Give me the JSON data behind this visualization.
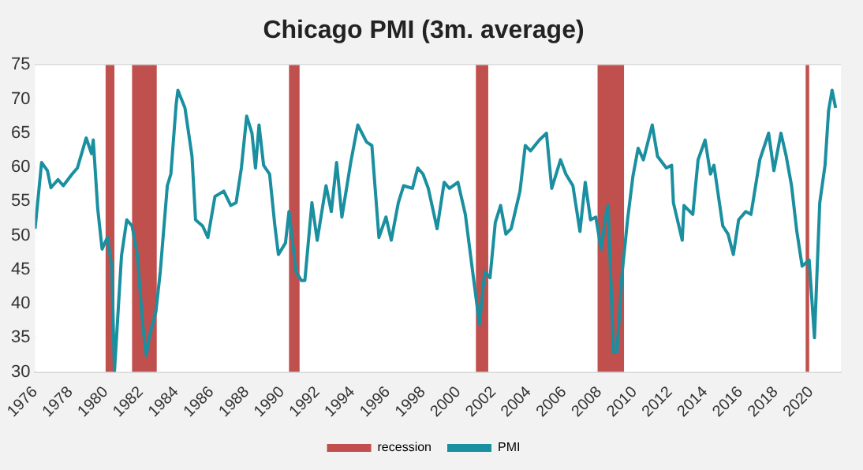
{
  "chart_data": {
    "type": "line",
    "title": "Chicago PMI (3m. average)",
    "series": [
      {
        "name": "PMI",
        "color": "#1a8fa0",
        "x": [
          1976.0,
          1976.37,
          1976.7,
          1976.9,
          1977.3,
          1977.6,
          1978.1,
          1978.4,
          1978.9,
          1979.2,
          1979.3,
          1979.55,
          1979.8,
          1980.1,
          1980.35,
          1980.5,
          1980.9,
          1981.2,
          1981.5,
          1981.8,
          1982.1,
          1982.3,
          1982.5,
          1982.85,
          1983.1,
          1983.5,
          1983.7,
          1984.0,
          1984.1,
          1984.5,
          1984.9,
          1985.1,
          1985.5,
          1985.8,
          1986.2,
          1986.7,
          1987.1,
          1987.4,
          1987.7,
          1988.0,
          1988.3,
          1988.5,
          1988.7,
          1988.96,
          1989.3,
          1989.6,
          1989.8,
          1990.2,
          1990.4,
          1990.8,
          1991.1,
          1991.3,
          1991.7,
          1992.0,
          1992.5,
          1992.8,
          1993.1,
          1993.4,
          1993.9,
          1994.3,
          1994.8,
          1995.1,
          1995.5,
          1995.9,
          1996.2,
          1996.6,
          1996.9,
          1997.4,
          1997.7,
          1998.0,
          1998.3,
          1998.8,
          1999.2,
          1999.5,
          1999.98,
          2000.4,
          2000.9,
          2001.2,
          2001.5,
          2001.8,
          2002.1,
          2002.4,
          2002.7,
          2003.0,
          2003.5,
          2003.8,
          2004.1,
          2004.6,
          2005.0,
          2005.3,
          2005.8,
          2006.1,
          2006.5,
          2006.9,
          2007.2,
          2007.5,
          2007.8,
          2008.1,
          2008.4,
          2008.5,
          2008.8,
          2009.0,
          2009.3,
          2009.6,
          2009.9,
          2010.2,
          2010.5,
          2011.0,
          2011.3,
          2011.8,
          2012.1,
          2012.2,
          2012.7,
          2012.8,
          2013.3,
          2013.6,
          2014.0,
          2014.3,
          2014.5,
          2015.0,
          2015.3,
          2015.6,
          2015.9,
          2016.3,
          2016.6,
          2017.1,
          2017.6,
          2017.9,
          2018.3,
          2018.6,
          2018.9,
          2019.2,
          2019.5,
          2019.9,
          2020.2,
          2020.5,
          2020.8,
          2021.0,
          2021.2,
          2021.4
        ],
        "values": [
          51,
          60.7,
          59.5,
          57,
          58.2,
          57.3,
          59,
          59.9,
          64.3,
          62,
          64,
          54,
          48,
          49.7,
          45.5,
          30,
          47,
          52.3,
          51.4,
          47.2,
          37,
          32.4,
          35.4,
          38.8,
          44.7,
          57.3,
          59,
          69.2,
          71.3,
          68.7,
          61.6,
          52.3,
          51.4,
          49.7,
          55.7,
          56.5,
          54.4,
          54.8,
          59.9,
          67.5,
          65,
          59.9,
          66.2,
          60.3,
          59,
          51.4,
          47.2,
          48.9,
          53.5,
          44.7,
          43.4,
          43.4,
          54.8,
          49.3,
          57.3,
          53.5,
          60.7,
          52.7,
          60.7,
          66.2,
          63.7,
          63.2,
          49.7,
          52.7,
          49.3,
          54.8,
          57.3,
          56.9,
          59.9,
          59,
          56.9,
          51,
          57.8,
          56.9,
          57.8,
          53.1,
          43,
          37,
          44.7,
          43.8,
          51.9,
          54.4,
          50.2,
          51,
          56.5,
          63.2,
          62.4,
          64,
          65,
          56.9,
          61.1,
          59,
          57.3,
          50.6,
          57.8,
          52.3,
          52.7,
          48,
          53.5,
          54.4,
          32.9,
          32.9,
          44.7,
          52.3,
          58.6,
          62.8,
          61.1,
          66.2,
          61.6,
          59.9,
          60.3,
          54.8,
          49.3,
          54.4,
          53.1,
          61.1,
          64,
          59,
          60.3,
          51.4,
          50.2,
          47.2,
          52.3,
          53.5,
          53.1,
          61.1,
          65,
          59.5,
          65,
          61.6,
          57.3,
          50.6,
          45.5,
          46.4,
          35,
          54.8,
          60.3,
          68.3,
          71.3,
          68.7
        ]
      }
    ],
    "xlim": [
      1976,
      2021.7
    ],
    "xticks": [
      1976,
      1978,
      1980,
      1982,
      1984,
      1986,
      1988,
      1990,
      1992,
      1994,
      1996,
      1998,
      2000,
      2002,
      2004,
      2006,
      2008,
      2010,
      2012,
      2014,
      2016,
      2018,
      2020
    ],
    "ylim": [
      30,
      75
    ],
    "yticks": [
      30,
      35,
      40,
      45,
      50,
      55,
      60,
      65,
      70,
      75
    ],
    "bands": [
      {
        "axis": "x",
        "from": 1980.0,
        "to": 1980.5,
        "label": "recession",
        "color": "#c0504d"
      },
      {
        "axis": "x",
        "from": 1981.5,
        "to": 1982.9,
        "color": "#c0504d"
      },
      {
        "axis": "x",
        "from": 1990.4,
        "to": 1991.0,
        "color": "#c0504d"
      },
      {
        "axis": "x",
        "from": 2001.0,
        "to": 2001.7,
        "color": "#c0504d"
      },
      {
        "axis": "x",
        "from": 2007.9,
        "to": 2009.4,
        "color": "#c0504d"
      },
      {
        "axis": "x",
        "from": 2019.7,
        "to": 2019.9,
        "color": "#c0504d"
      }
    ],
    "grid": "y",
    "legend": "bottom",
    "marker": "none",
    "line_style": "solid"
  }
}
